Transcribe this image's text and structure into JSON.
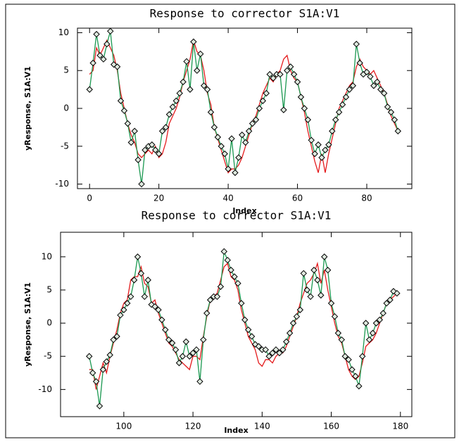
{
  "chart_data": [
    {
      "type": "line",
      "title": "Response to corrector S1A:V1",
      "x_label": "Index",
      "y_label": "yResponse, S1A:V1",
      "x": [
        0,
        1,
        2,
        3,
        4,
        5,
        6,
        7,
        8,
        9,
        10,
        11,
        12,
        13,
        14,
        15,
        16,
        17,
        18,
        19,
        20,
        21,
        22,
        23,
        24,
        25,
        26,
        27,
        28,
        29,
        30,
        31,
        32,
        33,
        34,
        35,
        36,
        37,
        38,
        39,
        40,
        41,
        42,
        43,
        44,
        45,
        46,
        47,
        48,
        49,
        50,
        51,
        52,
        53,
        54,
        55,
        56,
        57,
        58,
        59,
        60,
        61,
        62,
        63,
        64,
        65,
        66,
        67,
        68,
        69,
        70,
        71,
        72,
        73,
        74,
        75,
        76,
        77,
        78,
        79,
        80,
        81,
        82,
        83,
        84,
        85,
        86,
        87,
        88,
        89
      ],
      "series": [
        {
          "color": "#e41a1c",
          "marker": "none",
          "values": [
            4.5,
            5,
            8,
            7,
            8,
            9,
            8,
            7,
            5,
            2,
            0,
            -2,
            -3.5,
            -4.5,
            -6,
            -6.5,
            -6,
            -5.5,
            -6,
            -5,
            -6.5,
            -6,
            -4.5,
            -2,
            -1,
            0,
            1.5,
            3.5,
            5,
            6.5,
            9,
            7.5,
            7,
            5,
            2,
            0.5,
            -2.5,
            -4,
            -5.5,
            -7,
            -8.5,
            -8,
            -8,
            -7.5,
            -6.5,
            -5,
            -3.5,
            -2,
            -1,
            0.5,
            2,
            3,
            4,
            3.5,
            4.5,
            5,
            6.5,
            7,
            5,
            4,
            3.5,
            1.5,
            -0.5,
            -3,
            -5,
            -7,
            -8.5,
            -6,
            -8.5,
            -6,
            -4,
            -2,
            0,
            1,
            2,
            3,
            3.5,
            5.5,
            6.5,
            5.5,
            5,
            4.5,
            5,
            4,
            3,
            2,
            0.5,
            -1,
            -2,
            -3
          ]
        },
        {
          "color": "#1a9850",
          "marker": "diamond",
          "values": [
            2.5,
            6,
            9.8,
            7,
            6.5,
            8.5,
            10.2,
            5.8,
            5.5,
            1,
            -0.3,
            -2,
            -4.5,
            -3,
            -6.8,
            -10,
            -5.5,
            -5,
            -4.8,
            -5.5,
            -6,
            -3,
            -2.5,
            -0.8,
            0.2,
            1,
            2,
            3.5,
            6.2,
            2.5,
            8.8,
            5,
            7.2,
            3,
            2.5,
            -0.5,
            -2.5,
            -3.8,
            -5,
            -6,
            -8,
            -4,
            -8.5,
            -6.5,
            -3.5,
            -4.5,
            -3,
            -2,
            -1.5,
            0,
            1,
            2,
            4.5,
            4,
            4.5,
            4.5,
            -0.2,
            5,
            5.5,
            4.5,
            3.5,
            1.5,
            0,
            -1.5,
            -4.2,
            -6,
            -4.8,
            -6.5,
            -5.5,
            -4.8,
            -3,
            -1.5,
            -0.5,
            0.5,
            1.5,
            2.5,
            3,
            8.5,
            6,
            4.5,
            4.8,
            4.2,
            3,
            3.5,
            2.5,
            2,
            0.2,
            -0.5,
            -1.5,
            -3
          ]
        }
      ],
      "xlim": [
        -3.5,
        93
      ],
      "ylim": [
        -10.6,
        10.6
      ],
      "xticks": [
        0,
        20,
        40,
        60,
        80
      ],
      "yticks": [
        -10,
        -5,
        0,
        5,
        10
      ]
    },
    {
      "type": "line",
      "title": "Response to corrector S1A:V1",
      "x_label": "Index",
      "y_label": "yResponse, S1A:V1",
      "x": [
        90,
        91,
        92,
        93,
        94,
        95,
        96,
        97,
        98,
        99,
        100,
        101,
        102,
        103,
        104,
        105,
        106,
        107,
        108,
        109,
        110,
        111,
        112,
        113,
        114,
        115,
        116,
        117,
        118,
        119,
        120,
        121,
        122,
        123,
        124,
        125,
        126,
        127,
        128,
        129,
        130,
        131,
        132,
        133,
        134,
        135,
        136,
        137,
        138,
        139,
        140,
        141,
        142,
        143,
        144,
        145,
        146,
        147,
        148,
        149,
        150,
        151,
        152,
        153,
        154,
        155,
        156,
        157,
        158,
        159,
        160,
        161,
        162,
        163,
        164,
        165,
        166,
        167,
        168,
        169,
        170,
        171,
        172,
        173,
        174,
        175,
        176,
        177,
        178,
        179
      ],
      "series": [
        {
          "color": "#e41a1c",
          "marker": "none",
          "values": [
            -7,
            -7,
            -10,
            -8,
            -6,
            -7.5,
            -5,
            -3,
            -1,
            1.5,
            3,
            3.5,
            6.5,
            7,
            7,
            8.5,
            6,
            5.5,
            3,
            3.5,
            1.5,
            0,
            -1.5,
            -3,
            -3.5,
            -4.5,
            -5.5,
            -6,
            -6.5,
            -7,
            -5,
            -5,
            -5.5,
            -2,
            1,
            3.5,
            4,
            4.5,
            6.5,
            8.5,
            9,
            7,
            6.5,
            5,
            2,
            0,
            -2,
            -3,
            -4,
            -6,
            -6.5,
            -5.5,
            -5.5,
            -6,
            -5,
            -4.5,
            -4.5,
            -3.5,
            -2,
            -0.5,
            1,
            3,
            4.5,
            6,
            6.5,
            7.5,
            9,
            6,
            8,
            5,
            2.5,
            0,
            -2,
            -3,
            -5,
            -7,
            -8,
            -8.5,
            -8,
            -6,
            -3.5,
            -3,
            -2.5,
            -1.5,
            0,
            1.5,
            3,
            3.5,
            4,
            4.5
          ]
        },
        {
          "color": "#1a9850",
          "marker": "diamond",
          "values": [
            -5,
            -7.5,
            -8.8,
            -12.5,
            -7,
            -5.8,
            -4.8,
            -2.5,
            -2,
            1.2,
            2,
            3,
            4,
            6.5,
            10,
            7.5,
            4,
            6.5,
            2.8,
            2.5,
            2,
            0.5,
            -1,
            -2.5,
            -3,
            -4,
            -6,
            -5,
            -2.8,
            -5,
            -4.5,
            -4,
            -8.8,
            -2.5,
            1.5,
            3.5,
            4,
            4,
            5.5,
            10.8,
            9.5,
            8,
            7,
            6,
            3,
            0.5,
            -1,
            -2,
            -3.2,
            -3.5,
            -4,
            -4,
            -5,
            -4.5,
            -4,
            -4.5,
            -4,
            -2.8,
            -1.5,
            0,
            1,
            2,
            7.5,
            5,
            4,
            8,
            6.5,
            4.2,
            10,
            8,
            3,
            1,
            -1.5,
            -2.5,
            -5,
            -5.5,
            -7,
            -8,
            -9.5,
            -5,
            0,
            -2.5,
            -1.5,
            0,
            0.5,
            1.5,
            3,
            3.5,
            4.8,
            4.5
          ]
        }
      ],
      "xlim": [
        81.7,
        183.3
      ],
      "ylim": [
        -14.1,
        13.7
      ],
      "xticks": [
        100,
        120,
        140,
        160,
        180
      ],
      "yticks": [
        -10,
        -5,
        0,
        5,
        10
      ]
    }
  ]
}
